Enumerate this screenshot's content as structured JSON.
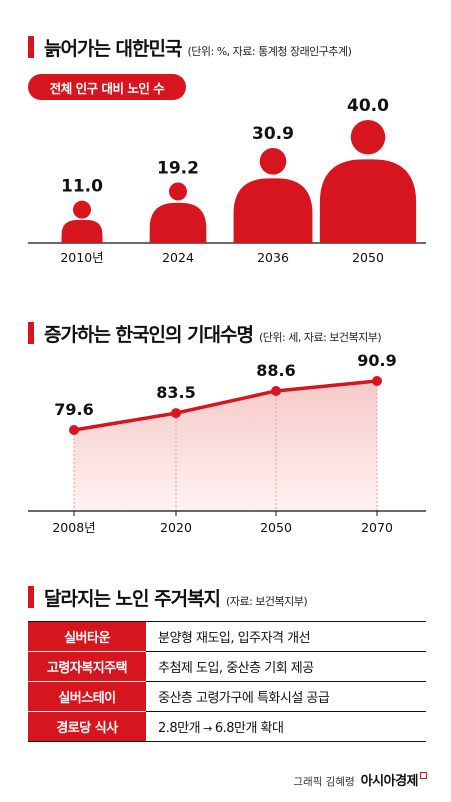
{
  "colors": {
    "accent": "#d7151f",
    "fill_light": "#fbe4e4"
  },
  "section1": {
    "title": "늙어가는 대한민국",
    "note": "(단위: %, 자료: 통계청 장래인구추계)",
    "pill": "전체 인구 대비 노인 수"
  },
  "section2": {
    "title": "증가하는 한국인의 기대수명",
    "note": "(단위: 세, 자료: 보건복지부)"
  },
  "section3": {
    "title": "달라지는 노인 주거복지",
    "note": "(자료: 보건복지부)",
    "rows": [
      {
        "label": "실버타운",
        "value": "분양형 재도입, 입주자격 개선"
      },
      {
        "label": "고령자복지주택",
        "value": "추첨제 도입, 중산층 기회 제공"
      },
      {
        "label": "실버스테이",
        "value": "중산층 고령가구에 특화시설 공급"
      },
      {
        "label": "경로당 식사",
        "value_from": "2.8만개",
        "value_arrow": "→",
        "value_to": "6.8만개 확대"
      }
    ]
  },
  "credit": {
    "name": "그래픽 김혜령",
    "brand": "아시아경제"
  },
  "chart_data": [
    {
      "type": "bar",
      "title": "늙어가는 대한민국",
      "subtitle": "전체 인구 대비 노인 수",
      "unit": "%",
      "categories": [
        "2010년",
        "2024",
        "2036",
        "2050"
      ],
      "values": [
        11.0,
        19.2,
        30.9,
        40.0
      ],
      "value_labels": [
        "11.0",
        "19.2",
        "30.9",
        "40.0"
      ],
      "ylim": [
        0,
        40
      ],
      "mark": "person-icon",
      "grid": false
    },
    {
      "type": "area",
      "title": "증가하는 한국인의 기대수명",
      "unit": "세",
      "categories": [
        "2008년",
        "2020",
        "2050",
        "2070"
      ],
      "values": [
        79.6,
        83.5,
        88.6,
        90.9
      ],
      "value_labels": [
        "79.6",
        "83.5",
        "88.6",
        "90.9"
      ],
      "ylim": [
        70,
        92
      ],
      "grid": false
    }
  ]
}
